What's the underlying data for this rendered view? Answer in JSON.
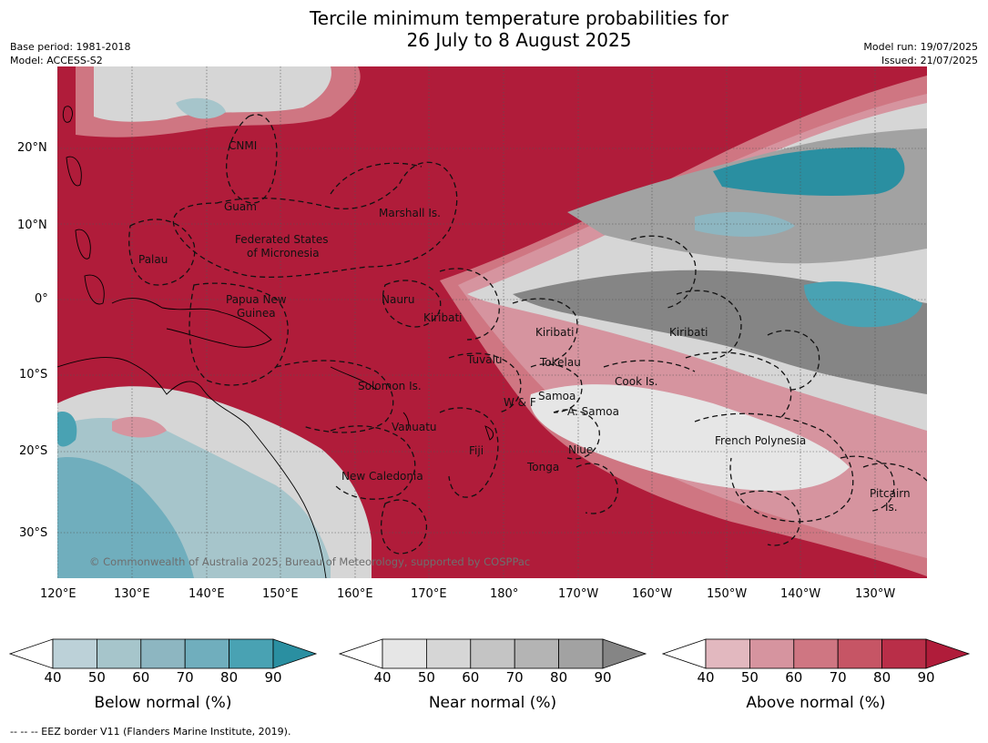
{
  "title_line1": "Tercile minimum temperature probabilities for",
  "title_line2": "26 July to 8 August 2025",
  "meta": {
    "base_period": "Base period: 1981-2018",
    "model": "Model: ACCESS-S2",
    "model_run": "Model run: 19/07/2025",
    "issued": "Issued: 21/07/2025"
  },
  "copyright": "© Commonwealth of Australia 2025, Bureau of Meteorology, supported by COSPPac",
  "footnote": "-- -- -- EEZ border V11 (Flanders Marine Institute, 2019).",
  "lat_labels": [
    "20°N",
    "10°N",
    "0°",
    "10°S",
    "20°S",
    "30°S"
  ],
  "lon_labels": [
    "120°E",
    "130°E",
    "140°E",
    "150°E",
    "160°E",
    "170°E",
    "180°",
    "170°W",
    "160°W",
    "150°W",
    "140°W",
    "130°W"
  ],
  "places": {
    "cnmi": "CNMI",
    "guam": "Guam",
    "marshall": "Marshall Is.",
    "fsm1": "Federated States",
    "fsm2": "of Micronesia",
    "palau": "Palau",
    "png1": "Papua New",
    "png2": "Guinea",
    "nauru": "Nauru",
    "kiribati_w": "Kiribati",
    "kiribati_c": "Kiribati",
    "kiribati_e": "Kiribati",
    "tuvalu": "Tuvalu",
    "tokelau": "Tokelau",
    "cook": "Cook Is.",
    "solomon": "Solomon Is.",
    "wf": "W & F",
    "samoa": "Samoa",
    "asamoa": "A. Samoa",
    "vanuatu": "Vanuatu",
    "fiji": "Fiji",
    "niue": "Niue",
    "frpoly": "French Polynesia",
    "tonga": "Tonga",
    "newcal": "New Caledonia",
    "pitcairn1": "Pitcairn",
    "pitcairn2": "Is."
  },
  "colorbars": {
    "ticks": [
      "40",
      "50",
      "60",
      "70",
      "80",
      "90"
    ],
    "below": {
      "label": "Below normal (%)",
      "colors": [
        "#ffffff",
        "#bcd1d8",
        "#a6c5cb",
        "#8db6c1",
        "#70aebd",
        "#49a2b3",
        "#2a8fa1"
      ]
    },
    "near": {
      "label": "Near normal (%)",
      "colors": [
        "#ffffff",
        "#e6e6e6",
        "#d6d6d6",
        "#c4c4c4",
        "#b4b4b4",
        "#a2a2a2",
        "#858585"
      ]
    },
    "above": {
      "label": "Above normal (%)",
      "colors": [
        "#ffffff",
        "#e2b8bf",
        "#d6949f",
        "#cf7682",
        "#c65565",
        "#b92e48",
        "#b01c3a"
      ]
    }
  }
}
